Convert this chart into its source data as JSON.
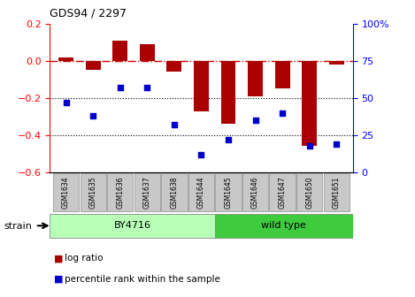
{
  "title": "GDS94 / 2297",
  "samples": [
    "GSM1634",
    "GSM1635",
    "GSM1636",
    "GSM1637",
    "GSM1638",
    "GSM1644",
    "GSM1645",
    "GSM1646",
    "GSM1647",
    "GSM1650",
    "GSM1651"
  ],
  "log_ratio": [
    0.02,
    -0.05,
    0.11,
    0.09,
    -0.06,
    -0.27,
    -0.34,
    -0.19,
    -0.15,
    -0.46,
    -0.02
  ],
  "percentile_rank": [
    47,
    38,
    57,
    57,
    32,
    12,
    22,
    35,
    40,
    18,
    19
  ],
  "bar_color": "#AA0000",
  "dot_color": "#0000CC",
  "dashed_line_color": "#CC0000",
  "grid_color": "#000000",
  "ylim_left": [
    -0.6,
    0.2
  ],
  "ylim_right": [
    0,
    100
  ],
  "yticks_left": [
    -0.6,
    -0.4,
    -0.2,
    0.0,
    0.2
  ],
  "yticks_right": [
    0,
    25,
    50,
    75,
    100
  ],
  "by4716_color": "#B8FFB8",
  "wildtype_color": "#3ECC3E",
  "sample_box_color": "#C8C8C8",
  "legend_items": [
    {
      "label": "log ratio",
      "color": "#AA0000"
    },
    {
      "label": "percentile rank within the sample",
      "color": "#0000CC"
    }
  ],
  "strain_label": "strain",
  "by4716_samples": 6,
  "wildtype_samples": 5
}
